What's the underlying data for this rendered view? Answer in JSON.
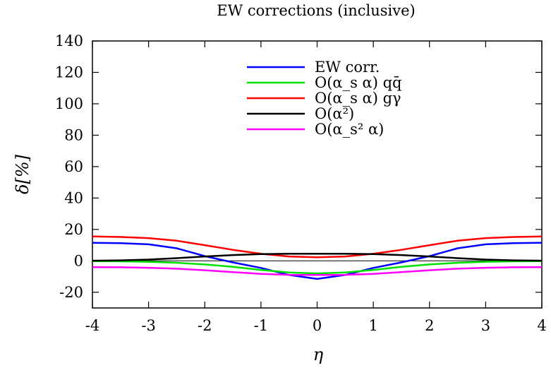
{
  "chart_data": {
    "type": "line",
    "title": "EW corrections (inclusive)",
    "xlabel": "η",
    "ylabel": "δ[%]",
    "xlim": [
      -4,
      4
    ],
    "ylim": [
      -30,
      140
    ],
    "xticks": [
      -4,
      -3,
      -2,
      -1,
      0,
      1,
      2,
      3,
      4
    ],
    "yticks": [
      -20,
      0,
      20,
      40,
      60,
      80,
      100,
      120,
      140
    ],
    "grid": false,
    "legend_position": "top-right",
    "zero_line": true,
    "series": [
      {
        "name": "EW corr.",
        "color": "#0000ff",
        "x": [
          -4,
          -3.5,
          -3,
          -2.5,
          -2,
          -1.5,
          -1,
          -0.5,
          0,
          0.5,
          1,
          1.5,
          2,
          2.5,
          3,
          3.5,
          4
        ],
        "y": [
          11.5,
          11.3,
          10.5,
          8.0,
          3.0,
          -1.0,
          -4.5,
          -9.0,
          -11.5,
          -9.0,
          -4.5,
          -1.0,
          3.0,
          8.0,
          10.5,
          11.3,
          11.5
        ]
      },
      {
        "name": "O(α_s α) qq̄",
        "color": "#00e000",
        "x": [
          -4,
          -3.5,
          -3,
          -2.5,
          -2,
          -1.5,
          -1,
          -0.5,
          0,
          0.5,
          1,
          1.5,
          2,
          2.5,
          3,
          3.5,
          4
        ],
        "y": [
          -0.2,
          -0.3,
          -0.6,
          -1.2,
          -2.3,
          -3.8,
          -5.8,
          -7.4,
          -8.0,
          -7.4,
          -5.8,
          -3.8,
          -2.3,
          -1.2,
          -0.6,
          -0.3,
          -0.2
        ]
      },
      {
        "name": "O(α_s α) gγ",
        "color": "#ff0000",
        "x": [
          -4,
          -3.5,
          -3,
          -2.5,
          -2,
          -1.5,
          -1,
          -0.5,
          0,
          0.5,
          1,
          1.5,
          2,
          2.5,
          3,
          3.5,
          4
        ],
        "y": [
          15.5,
          15.2,
          14.5,
          12.8,
          10.0,
          7.0,
          4.5,
          2.8,
          2.3,
          2.8,
          4.5,
          7.0,
          10.0,
          12.8,
          14.5,
          15.2,
          15.5
        ]
      },
      {
        "name": "O(α²)",
        "color": "#000000",
        "x": [
          -4,
          -3.5,
          -3,
          -2.5,
          -2,
          -1.5,
          -1,
          -0.5,
          0,
          0.5,
          1,
          1.5,
          2,
          2.5,
          3,
          3.5,
          4
        ],
        "y": [
          0.1,
          0.3,
          0.8,
          1.7,
          2.8,
          3.7,
          4.3,
          4.5,
          4.5,
          4.5,
          4.3,
          3.7,
          2.8,
          1.7,
          0.8,
          0.3,
          0.1
        ]
      },
      {
        "name": "O(α_s² α)",
        "color": "#ff00ff",
        "x": [
          -4,
          -3.5,
          -3,
          -2.5,
          -2,
          -1.5,
          -1,
          -0.5,
          0,
          0.5,
          1,
          1.5,
          2,
          2.5,
          3,
          3.5,
          4
        ],
        "y": [
          -4.0,
          -4.1,
          -4.4,
          -5.0,
          -6.0,
          -7.2,
          -8.3,
          -8.9,
          -9.0,
          -8.9,
          -8.3,
          -7.2,
          -6.0,
          -5.0,
          -4.4,
          -4.1,
          -4.0
        ]
      }
    ]
  }
}
